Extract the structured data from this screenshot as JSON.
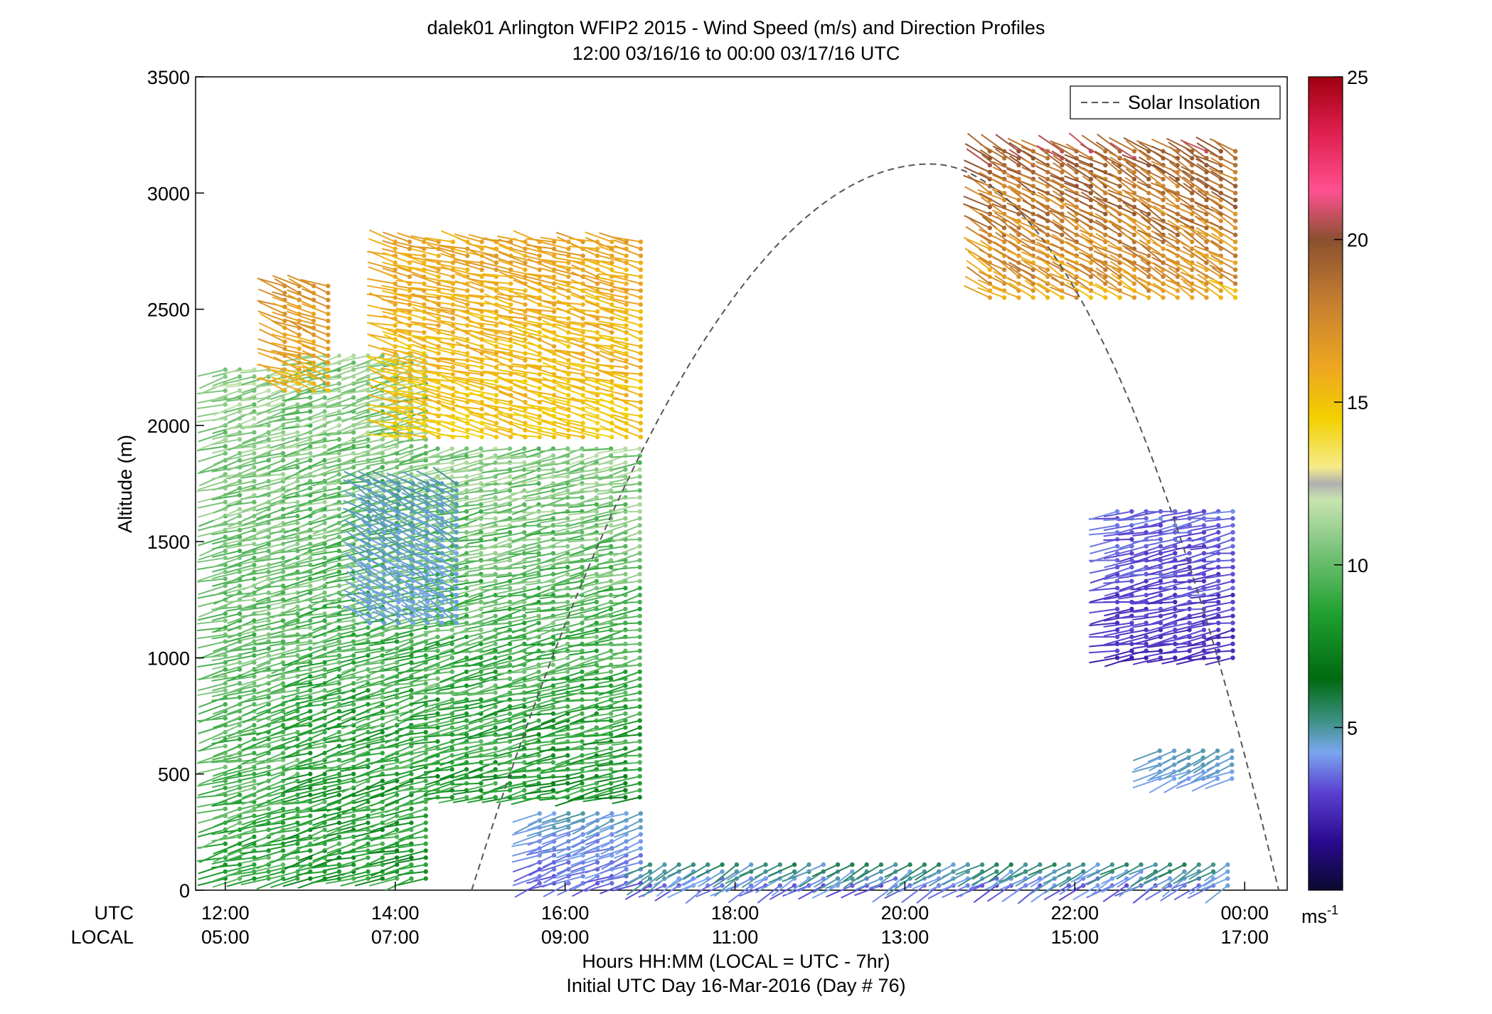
{
  "chart_data": {
    "type": "scatter",
    "title": "dalek01 Arlington WFIP2 2015 - Wind Speed (m/s) and Direction Profiles",
    "subtitle": "12:00 03/16/16 to 00:00 03/17/16  UTC",
    "ylabel": "Altitude (m)",
    "xlabel": "Hours HH:MM  (LOCAL = UTC - 7hr)",
    "xlabel2": "Initial UTC Day 16-Mar-2016 (Day # 76)",
    "utc_row_label": "UTC",
    "local_row_label": "LOCAL",
    "xlim_hours": [
      11.65,
      24.5
    ],
    "ylim": [
      0,
      3500
    ],
    "yticks": [
      0,
      500,
      1000,
      1500,
      2000,
      2500,
      3000,
      3500
    ],
    "ytick_labels": [
      "0",
      "500",
      "1000",
      "1500",
      "2000",
      "2500",
      "3000",
      "3500"
    ],
    "xticks_hours": [
      12,
      14,
      16,
      18,
      20,
      22,
      24
    ],
    "xtick_utc_labels": [
      "12:00",
      "14:00",
      "16:00",
      "18:00",
      "20:00",
      "22:00",
      "00:00"
    ],
    "xtick_local_labels": [
      "05:00",
      "07:00",
      "09:00",
      "11:00",
      "13:00",
      "15:00",
      "17:00"
    ],
    "legend": {
      "label": "Solar Insolation",
      "position": "top-right"
    },
    "colorbar": {
      "ticks": [
        5,
        10,
        15,
        20,
        25
      ],
      "tick_labels": [
        "5",
        "10",
        "15",
        "20",
        "25"
      ],
      "unit_base": "ms",
      "unit_exp": "-1",
      "range": [
        0,
        25
      ]
    },
    "solar_insolation_curve": {
      "start_hour": 14.9,
      "peak_hour": 20.3,
      "end_hour": 24.4,
      "peak_altitude": 3125
    },
    "barb_regions": [
      {
        "t0": 12.0,
        "t1": 13.0,
        "z0": 50,
        "z1": 2250,
        "speed_low": 8,
        "speed_high": 12,
        "dir": 255
      },
      {
        "t0": 13.0,
        "t1": 14.5,
        "z0": 50,
        "z1": 2300,
        "speed_low": 7,
        "speed_high": 12,
        "dir": 255
      },
      {
        "t0": 14.5,
        "t1": 17.0,
        "z0": 400,
        "z1": 1900,
        "speed_low": 7,
        "speed_high": 12,
        "dir": 258
      },
      {
        "t0": 12.7,
        "t1": 13.3,
        "z0": 2150,
        "z1": 2600,
        "speed_low": 15,
        "speed_high": 18,
        "dir": 290
      },
      {
        "t0": 14.0,
        "t1": 17.0,
        "z0": 1950,
        "z1": 2800,
        "speed_low": 14,
        "speed_high": 17,
        "dir": 285
      },
      {
        "t0": 13.7,
        "t1": 14.8,
        "z0": 1150,
        "z1": 1750,
        "speed_low": 4,
        "speed_high": 5,
        "dir": 300
      },
      {
        "t0": 15.7,
        "t1": 17.0,
        "z0": 30,
        "z1": 350,
        "speed_low": 3,
        "speed_high": 5,
        "dir": 250
      },
      {
        "t0": 17.0,
        "t1": 23.9,
        "z0": 20,
        "z1": 120,
        "speed_low": 3,
        "speed_high": 6,
        "dir": 240
      },
      {
        "t0": 21.0,
        "t1": 24.0,
        "z0": 2550,
        "z1": 3200,
        "speed_low": 15,
        "speed_high": 21,
        "dir": 300
      },
      {
        "t0": 22.5,
        "t1": 24.0,
        "z0": 1000,
        "z1": 1650,
        "speed_low": 2,
        "speed_high": 4,
        "dir": 260
      },
      {
        "t0": 23.0,
        "t1": 24.0,
        "z0": 480,
        "z1": 620,
        "speed_low": 4,
        "speed_high": 5,
        "dir": 245
      }
    ]
  }
}
